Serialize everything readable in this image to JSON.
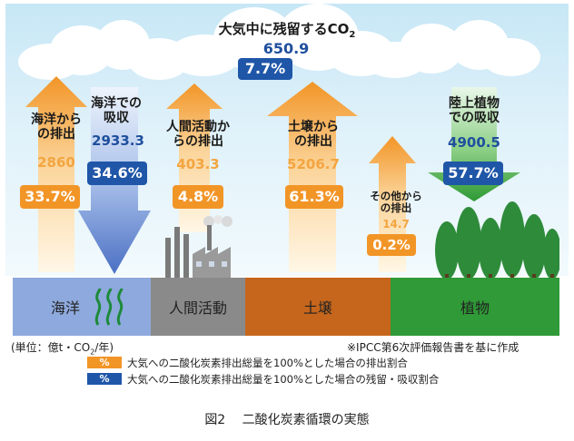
{
  "atmosphere": {
    "title": "大気中に残留するCO",
    "title_sub": "2",
    "value": "650.9",
    "percent": "7.7%"
  },
  "flows": {
    "ocean_emit": {
      "label": [
        "海洋から",
        "の排出"
      ],
      "value": "2860",
      "percent": "33.7%"
    },
    "ocean_absorb": {
      "label": [
        "海洋での",
        "吸収"
      ],
      "value": "2933.3",
      "percent": "34.6%"
    },
    "human_emit": {
      "label": [
        "人間活動か",
        "らの排出"
      ],
      "value": "403.3",
      "percent": "4.8%"
    },
    "soil_emit": {
      "label": [
        "土壌から",
        "の排出"
      ],
      "value": "5206.7",
      "percent": "61.3%"
    },
    "other_emit": {
      "label": [
        "その他から",
        "の排出"
      ],
      "value": "14.7",
      "percent": "0.2%"
    },
    "land_absorb": {
      "label": [
        "陸上植物",
        "での吸収"
      ],
      "value": "4900.5",
      "percent": "57.7%"
    }
  },
  "bases": {
    "ocean": "海洋",
    "human": "人間活動",
    "soil": "土壌",
    "plants": "植物"
  },
  "unit_note": "(単位：億t・CO",
  "unit_note_sub": "2",
  "unit_note_end": "/年)",
  "source_note": "※IPCC第6次評価報告書を基に作成",
  "legend": [
    {
      "swatch": "%",
      "color": "#f29527",
      "text": "大気への二酸化炭素排出総量を100%とした場合の排出割合"
    },
    {
      "swatch": "%",
      "color": "#1f56a8",
      "text": "大気への二酸化炭素排出総量を100%とした場合の残留・吸収割合"
    }
  ],
  "caption": "図2　 二酸化炭素循環の実態",
  "colors": {
    "orange": "#f29527",
    "blue": "#1f56a8",
    "ocean": "#8fa8dc",
    "human": "#8c8c8c",
    "soil": "#c7661d",
    "plants": "#2f9a37"
  }
}
